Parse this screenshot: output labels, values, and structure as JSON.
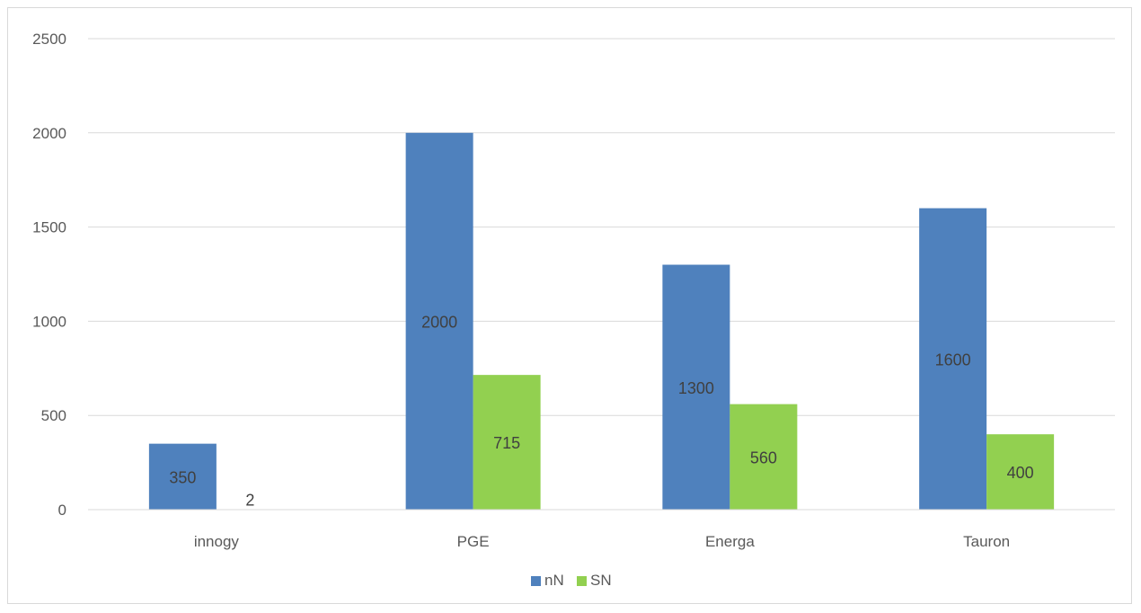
{
  "chart_data": {
    "type": "bar",
    "categories": [
      "innogy",
      "PGE",
      "Energa",
      "Tauron"
    ],
    "series": [
      {
        "name": "nN",
        "values": [
          350,
          2000,
          1300,
          1600
        ],
        "color": "#4f81bd"
      },
      {
        "name": "SN",
        "values": [
          2,
          715,
          560,
          400
        ],
        "color": "#92d050"
      }
    ],
    "ylim": [
      0,
      2500
    ],
    "yticks": [
      0,
      500,
      1000,
      1500,
      2000,
      2500
    ],
    "grid": true,
    "legend": "bottom",
    "data_labels": true,
    "gridline_color": "#d9d9d9",
    "title": "",
    "xlabel": "",
    "ylabel": ""
  }
}
